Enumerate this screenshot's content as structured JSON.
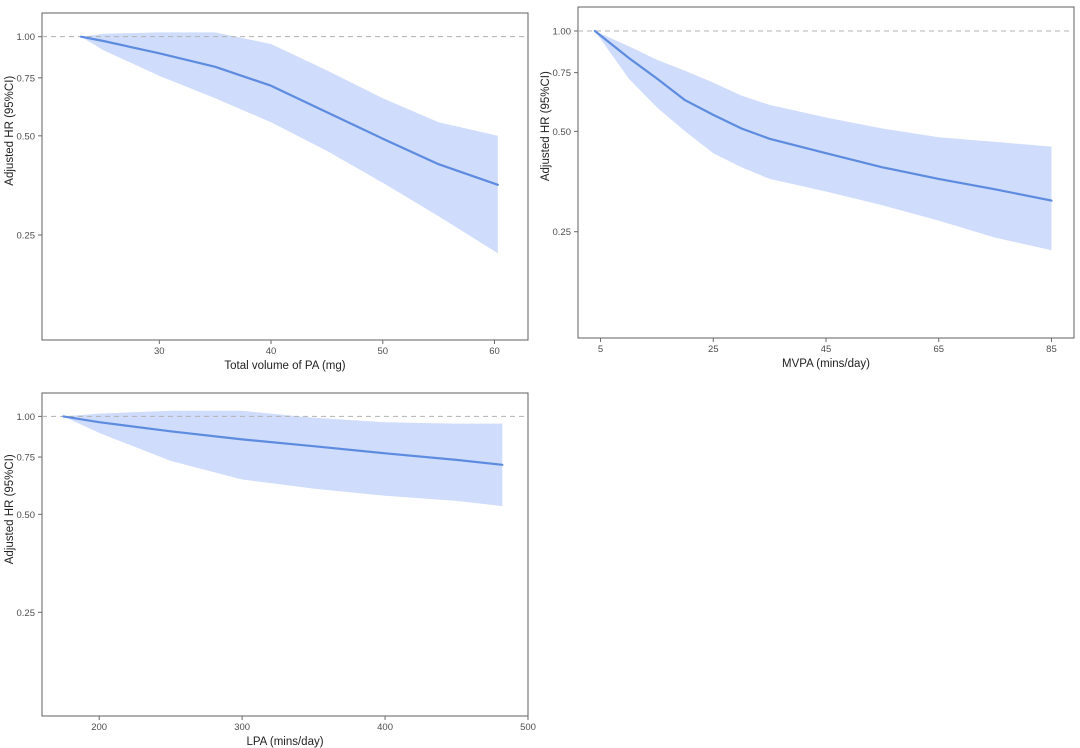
{
  "chart_data": [
    {
      "type": "line",
      "title": "",
      "xlabel": "Total volume of PA (mg)",
      "ylabel": "Adjusted HR (95%CI)",
      "xlim": [
        19.5,
        63
      ],
      "ylim": [
        0.12,
        1.18
      ],
      "yscale": "log",
      "x_ticks": [
        30,
        40,
        50,
        60
      ],
      "y_ticks": [
        0.25,
        0.5,
        0.75,
        1.0
      ],
      "x_tick_labels": [
        "30",
        "40",
        "50",
        "60"
      ],
      "y_tick_labels": [
        "0.25",
        "0.50",
        "0.75",
        "1.00"
      ],
      "reference_line": 1.0,
      "series": [
        {
          "name": "Adjusted HR",
          "x": [
            23,
            25,
            30,
            35,
            40,
            45,
            50,
            55,
            60.3
          ],
          "y": [
            1.0,
            0.97,
            0.89,
            0.81,
            0.71,
            0.59,
            0.49,
            0.41,
            0.355
          ],
          "lower": [
            1.0,
            0.91,
            0.76,
            0.65,
            0.55,
            0.45,
            0.36,
            0.285,
            0.22
          ],
          "upper": [
            1.0,
            1.02,
            1.03,
            1.03,
            0.95,
            0.79,
            0.65,
            0.55,
            0.5
          ]
        }
      ]
    },
    {
      "type": "line",
      "title": "",
      "xlabel": "MVPA (mins/day)",
      "ylabel": "Adjusted HR (95%CI)",
      "xlim": [
        1,
        89
      ],
      "ylim": [
        0.12,
        1.18
      ],
      "yscale": "log",
      "x_ticks": [
        5,
        25,
        45,
        65,
        85
      ],
      "y_ticks": [
        0.25,
        0.5,
        0.75,
        1.0
      ],
      "x_tick_labels": [
        "5",
        "25",
        "45",
        "65",
        "85"
      ],
      "y_tick_labels": [
        "0.25",
        "0.50",
        "0.75",
        "1.00"
      ],
      "reference_line": 1.0,
      "series": [
        {
          "name": "Adjusted HR",
          "x": [
            4,
            10,
            15,
            20,
            25,
            30,
            35,
            45,
            55,
            65,
            75,
            85
          ],
          "y": [
            1.0,
            0.83,
            0.72,
            0.62,
            0.56,
            0.51,
            0.475,
            0.43,
            0.39,
            0.36,
            0.335,
            0.31
          ],
          "lower": [
            1.0,
            0.72,
            0.59,
            0.5,
            0.43,
            0.39,
            0.36,
            0.33,
            0.3,
            0.27,
            0.24,
            0.22
          ],
          "upper": [
            1.0,
            0.9,
            0.82,
            0.76,
            0.7,
            0.64,
            0.6,
            0.55,
            0.51,
            0.48,
            0.465,
            0.45
          ]
        }
      ]
    },
    {
      "type": "line",
      "title": "",
      "xlabel": "LPA (mins/day)",
      "ylabel": "Adjusted HR (95%CI)",
      "xlim": [
        160,
        500
      ],
      "ylim": [
        0.12,
        1.18
      ],
      "yscale": "log",
      "x_ticks": [
        200,
        300,
        400,
        500
      ],
      "y_ticks": [
        0.25,
        0.5,
        0.75,
        1.0
      ],
      "x_tick_labels": [
        "200",
        "300",
        "400",
        "500"
      ],
      "y_tick_labels": [
        "0.25",
        "0.50",
        "0.75",
        "1.00"
      ],
      "reference_line": 1.0,
      "series": [
        {
          "name": "Adjusted HR",
          "x": [
            175,
            200,
            250,
            300,
            350,
            400,
            450,
            482
          ],
          "y": [
            1.0,
            0.96,
            0.9,
            0.85,
            0.81,
            0.77,
            0.735,
            0.71
          ],
          "lower": [
            1.0,
            0.89,
            0.73,
            0.64,
            0.6,
            0.57,
            0.55,
            0.53
          ],
          "upper": [
            1.0,
            1.02,
            1.04,
            1.04,
            0.99,
            0.96,
            0.95,
            0.95
          ]
        }
      ]
    }
  ]
}
